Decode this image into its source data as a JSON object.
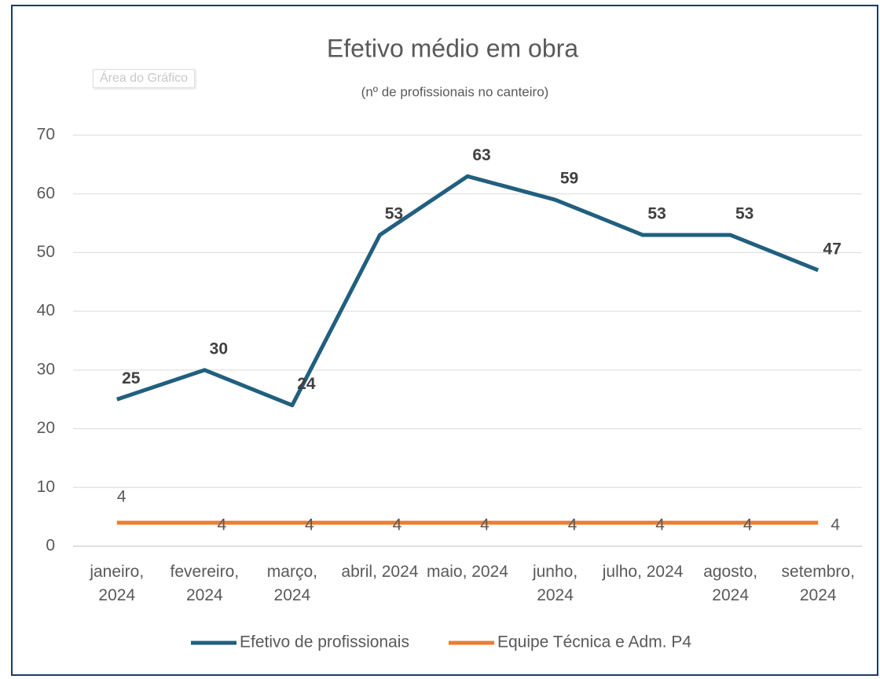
{
  "tooltip": "Área do Gráfico",
  "chart_data": {
    "type": "line",
    "title": "Efetivo médio em obra",
    "subtitle": "(nº de profissionais no canteiro)",
    "categories": [
      "janeiro, 2024",
      "fevereiro, 2024",
      "março, 2024",
      "abril, 2024",
      "maio, 2024",
      "junho, 2024",
      "julho, 2024",
      "agosto, 2024",
      "setembro, 2024"
    ],
    "series": [
      {
        "name": "Efetivo de profissionais",
        "color": "#215f7e",
        "values": [
          25,
          30,
          24,
          53,
          63,
          59,
          53,
          53,
          47
        ]
      },
      {
        "name": "Equipe Técnica e Adm. P4",
        "color": "#ed7d31",
        "values": [
          4,
          4,
          4,
          4,
          4,
          4,
          4,
          4,
          4
        ]
      }
    ],
    "ylim": [
      0,
      70
    ],
    "yticks": [
      0,
      10,
      20,
      30,
      40,
      50,
      60,
      70
    ],
    "grid": true,
    "legend": "bottom"
  }
}
